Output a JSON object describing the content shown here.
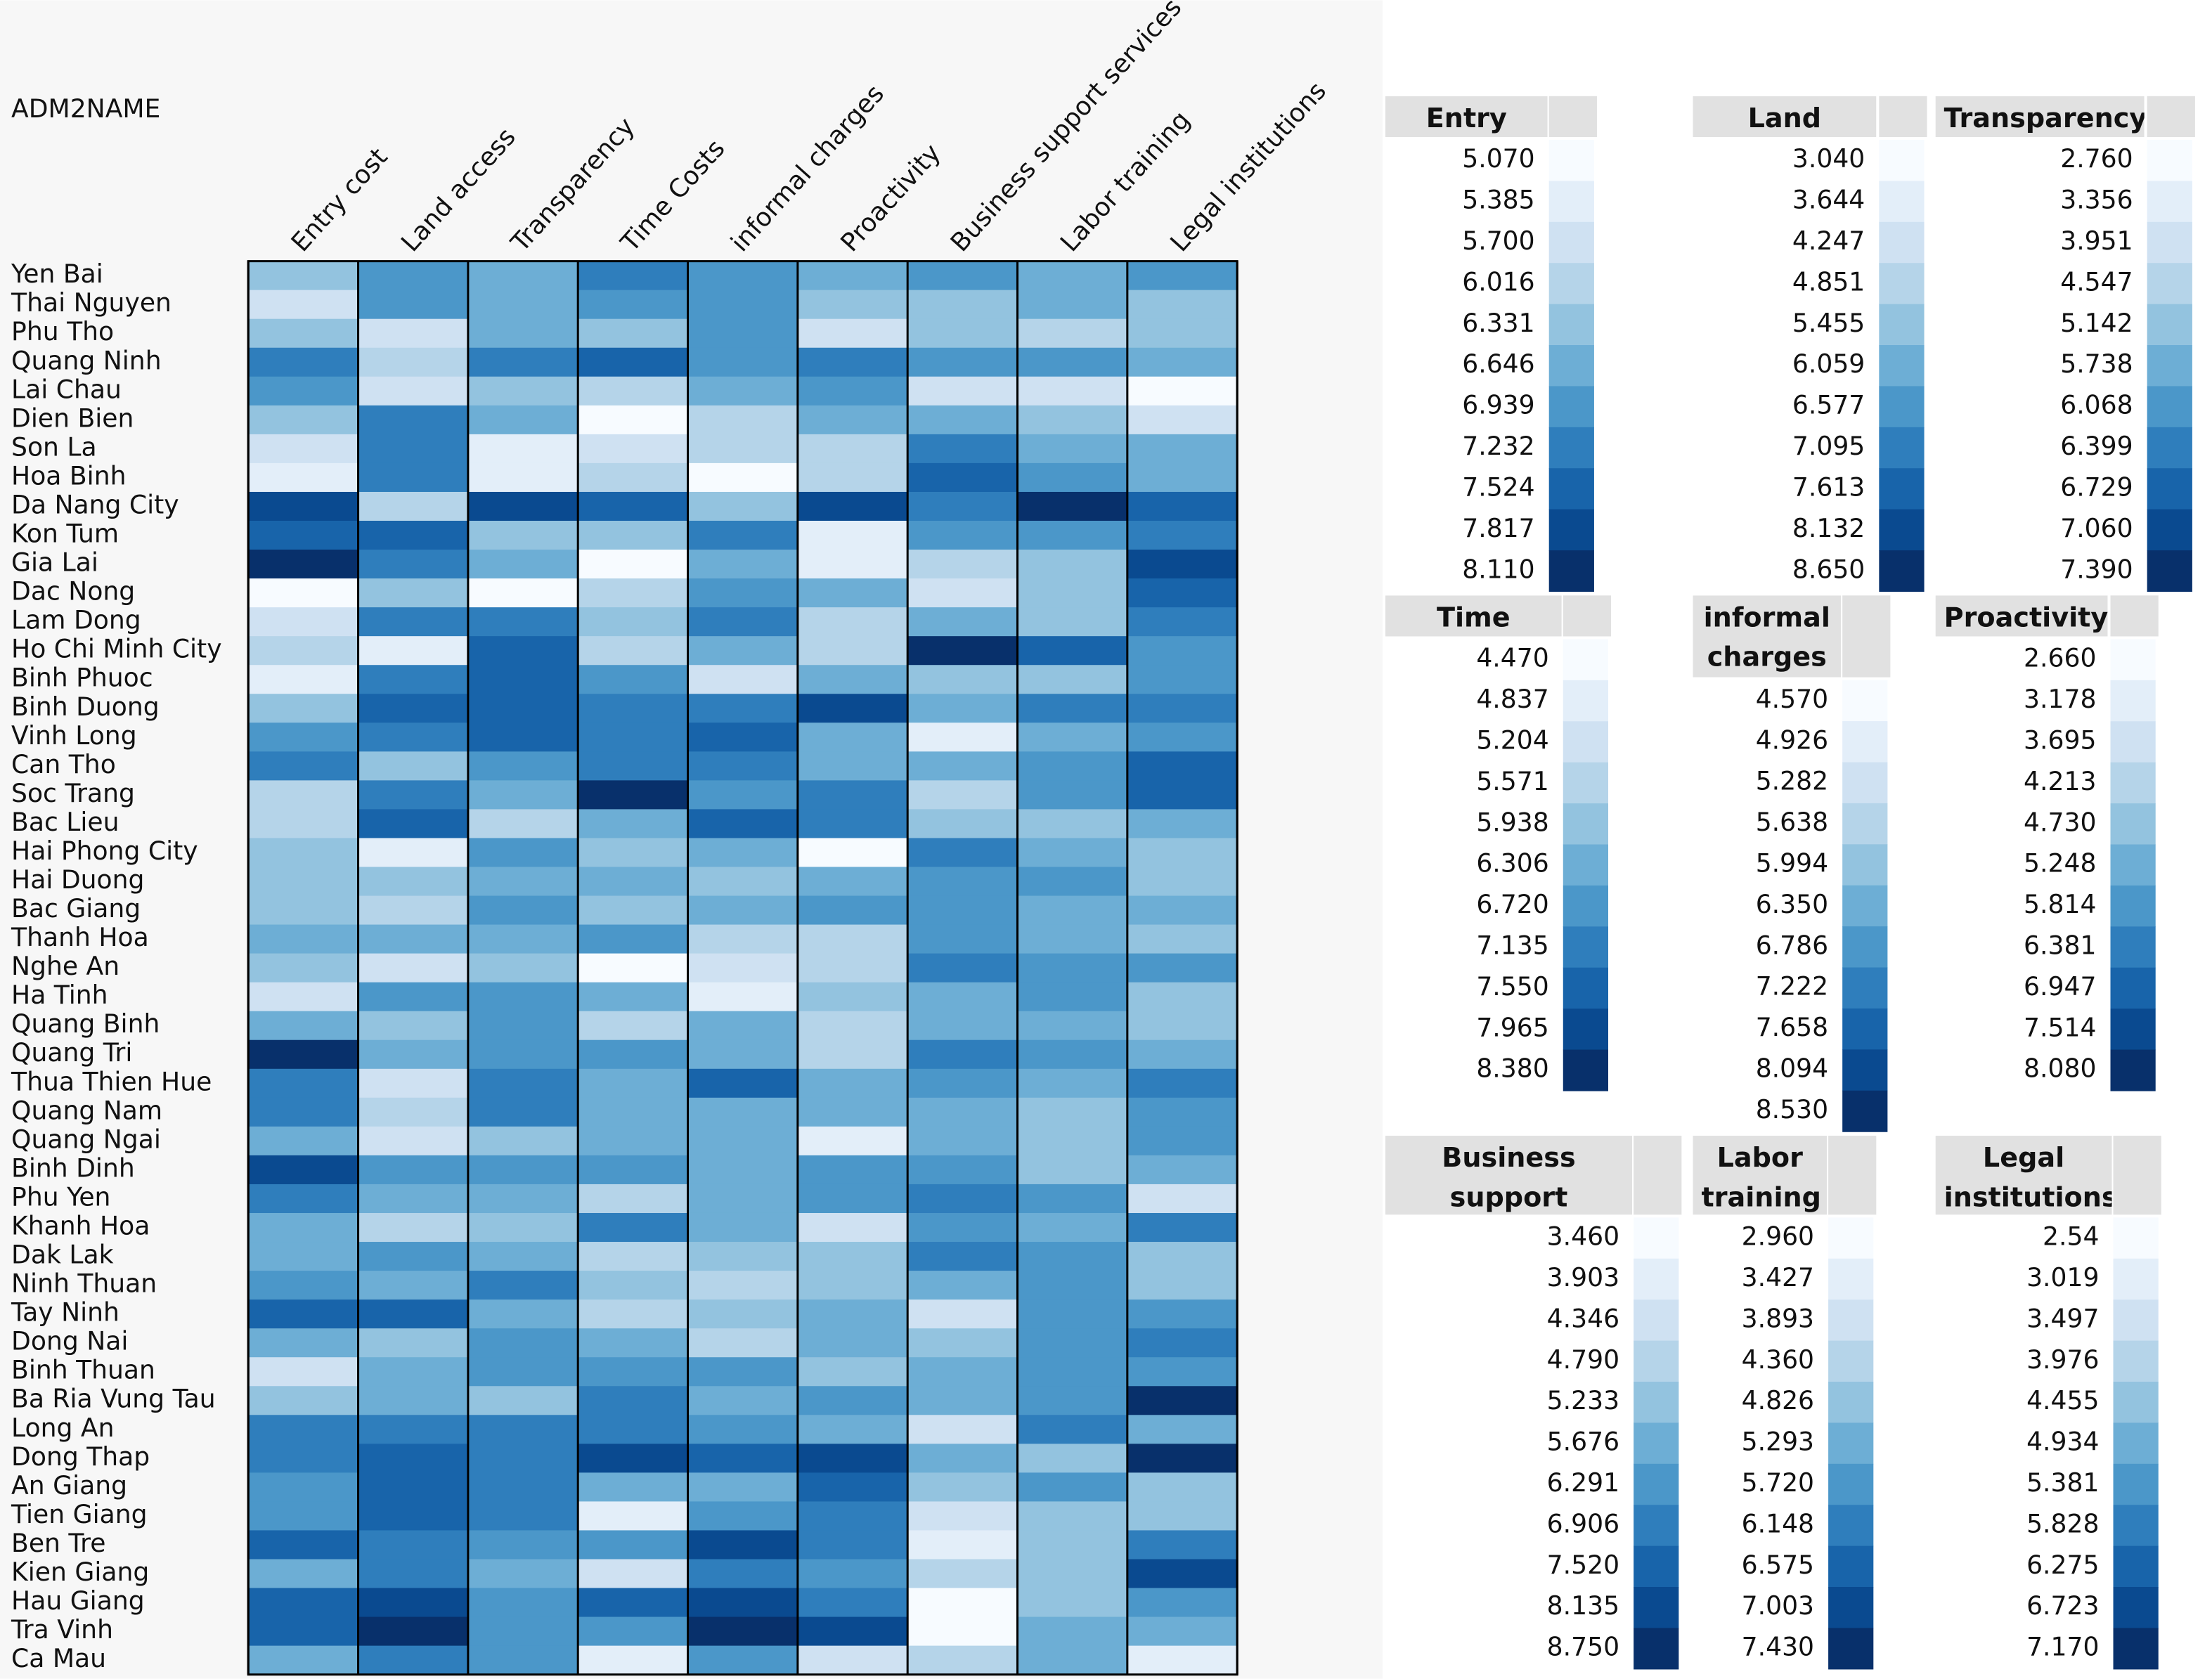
{
  "chart_data": {
    "type": "heatmap",
    "row_label": "ADM2NAME",
    "colors": [
      "#f7fbff",
      "#e3eef9",
      "#cfe1f2",
      "#b5d4e9",
      "#93c3df",
      "#6daed5",
      "#4b97c9",
      "#2f7ebc",
      "#1864aa",
      "#0a4a90",
      "#08306b"
    ],
    "rows": [
      "Yen Bai",
      "Thai Nguyen",
      "Phu Tho",
      "Quang Ninh",
      "Lai Chau",
      "Dien Bien",
      "Son La",
      "Hoa Binh",
      "Da Nang City",
      "Kon Tum",
      "Gia Lai",
      "Dac Nong",
      "Lam Dong",
      "Ho Chi Minh City",
      "Binh Phuoc",
      "Binh Duong",
      "Vinh Long",
      "Can Tho",
      "Soc Trang",
      "Bac Lieu",
      "Hai Phong City",
      "Hai Duong",
      "Bac Giang",
      "Thanh Hoa",
      "Nghe An",
      "Ha Tinh",
      "Quang Binh",
      "Quang Tri",
      "Thua Thien Hue",
      "Quang Nam",
      "Quang Ngai",
      "Binh Dinh",
      "Phu Yen",
      "Khanh Hoa",
      "Dak Lak",
      "Ninh Thuan",
      "Tay Ninh",
      "Dong Nai",
      "Binh Thuan",
      "Ba Ria Vung Tau",
      "Long An",
      "Dong Thap",
      "An Giang",
      "Tien Giang",
      "Ben Tre",
      "Kien Giang",
      "Hau Giang",
      "Tra Vinh",
      "Ca Mau"
    ],
    "series": [
      {
        "name": "Entry cost",
        "ticks": [
          {
            "value": 5.07,
            "label": "5.070"
          },
          5.385,
          {
            "value": 5.7,
            "label": "5.700"
          },
          6.016,
          6.331,
          6.646,
          6.939,
          7.232,
          7.524,
          7.817,
          {
            "value": 8.11,
            "label": "8.110"
          }
        ],
        "values": [
          6.331,
          5.7,
          6.331,
          7.232,
          6.939,
          6.331,
          5.7,
          5.385,
          7.817,
          7.524,
          8.11,
          5.07,
          5.7,
          6.016,
          5.385,
          6.331,
          6.939,
          7.232,
          6.016,
          6.016,
          6.331,
          6.331,
          6.331,
          6.646,
          6.331,
          5.7,
          6.646,
          8.11,
          7.232,
          7.232,
          6.646,
          7.817,
          7.232,
          6.646,
          6.646,
          6.939,
          7.524,
          6.646,
          5.7,
          6.331,
          7.232,
          7.232,
          6.939,
          6.939,
          7.524,
          6.646,
          7.524,
          7.524,
          6.646
        ]
      },
      {
        "name": "Land access",
        "ticks": [
          {
            "value": 3.04,
            "label": "3.040"
          },
          3.644,
          4.247,
          4.851,
          5.455,
          6.059,
          6.577,
          7.095,
          7.613,
          8.132,
          {
            "value": 8.65,
            "label": "8.650"
          }
        ],
        "values": [
          6.577,
          6.577,
          4.247,
          4.851,
          4.247,
          7.095,
          7.095,
          7.095,
          4.851,
          7.613,
          7.095,
          5.455,
          7.095,
          3.644,
          7.095,
          7.613,
          7.095,
          5.455,
          7.095,
          7.613,
          3.644,
          5.455,
          4.851,
          6.059,
          4.247,
          6.577,
          5.455,
          6.059,
          4.247,
          4.851,
          4.247,
          6.577,
          6.059,
          4.851,
          6.577,
          6.059,
          7.613,
          5.455,
          6.059,
          6.059,
          7.095,
          7.613,
          7.613,
          7.613,
          7.095,
          7.095,
          8.132,
          8.65,
          7.095
        ]
      },
      {
        "name": "Transparency",
        "ticks": [
          {
            "value": 2.76,
            "label": "2.760"
          },
          3.356,
          3.951,
          4.547,
          5.142,
          5.738,
          6.068,
          6.399,
          6.729,
          {
            "value": 7.06,
            "label": "7.060"
          },
          {
            "value": 7.39,
            "label": "7.390"
          }
        ],
        "values": [
          5.738,
          5.738,
          5.738,
          6.399,
          5.142,
          5.738,
          3.356,
          3.356,
          7.06,
          5.142,
          5.738,
          2.76,
          6.399,
          6.729,
          6.729,
          6.729,
          6.729,
          6.068,
          5.738,
          4.547,
          6.068,
          5.738,
          6.068,
          5.738,
          5.142,
          6.068,
          6.068,
          6.068,
          6.399,
          6.399,
          5.142,
          6.068,
          5.738,
          5.142,
          5.738,
          6.399,
          5.738,
          6.068,
          6.068,
          5.142,
          6.399,
          6.399,
          6.399,
          6.399,
          6.068,
          5.738,
          6.068,
          6.068,
          6.068
        ]
      },
      {
        "name": "Time Costs",
        "ticks": [
          {
            "value": 4.47,
            "label": "4.470"
          },
          4.837,
          5.204,
          5.571,
          5.938,
          6.306,
          {
            "value": 6.72,
            "label": "6.720"
          },
          7.135,
          {
            "value": 7.55,
            "label": "7.550"
          },
          7.965,
          {
            "value": 8.38,
            "label": "8.380"
          }
        ],
        "values": [
          7.135,
          6.72,
          5.938,
          7.55,
          5.571,
          4.47,
          5.204,
          5.571,
          7.55,
          5.938,
          4.47,
          5.571,
          5.938,
          5.571,
          6.72,
          7.135,
          7.135,
          7.135,
          8.38,
          6.306,
          5.938,
          6.306,
          5.938,
          6.72,
          4.47,
          6.306,
          5.571,
          6.72,
          6.306,
          6.306,
          6.306,
          6.72,
          5.571,
          7.135,
          5.571,
          5.938,
          5.571,
          6.306,
          6.72,
          7.135,
          7.135,
          7.965,
          6.306,
          4.837,
          6.72,
          5.204,
          7.55,
          6.72,
          4.837
        ]
      },
      {
        "name": "informal charges",
        "ticks": [
          {
            "value": 4.57,
            "label": "4.570"
          },
          4.926,
          5.282,
          5.638,
          5.994,
          {
            "value": 6.35,
            "label": "6.350"
          },
          6.786,
          7.222,
          7.658,
          8.094,
          {
            "value": 8.53,
            "label": "8.530"
          }
        ],
        "values": [
          6.786,
          6.786,
          6.786,
          6.786,
          6.35,
          5.638,
          5.638,
          4.57,
          5.994,
          7.222,
          6.35,
          6.786,
          7.222,
          6.35,
          5.282,
          7.222,
          7.658,
          7.222,
          6.786,
          7.658,
          6.35,
          5.994,
          6.35,
          5.638,
          5.282,
          4.926,
          6.35,
          6.35,
          7.658,
          6.35,
          6.35,
          6.35,
          6.35,
          6.35,
          5.994,
          5.638,
          5.994,
          5.638,
          6.786,
          6.35,
          6.786,
          7.658,
          6.35,
          6.786,
          8.094,
          7.222,
          8.094,
          8.53,
          6.786
        ]
      },
      {
        "name": "Proactivity",
        "ticks": [
          {
            "value": 2.66,
            "label": "2.660"
          },
          3.178,
          3.695,
          4.213,
          {
            "value": 4.73,
            "label": "4.730"
          },
          5.248,
          5.814,
          6.381,
          6.947,
          7.514,
          {
            "value": 8.08,
            "label": "8.080"
          }
        ],
        "values": [
          5.248,
          4.73,
          3.695,
          6.381,
          5.814,
          5.248,
          4.213,
          4.213,
          7.514,
          3.178,
          3.178,
          5.248,
          4.213,
          4.213,
          5.248,
          7.514,
          5.248,
          5.248,
          6.381,
          6.381,
          2.66,
          5.248,
          5.814,
          4.213,
          4.213,
          4.73,
          4.213,
          4.213,
          5.248,
          5.248,
          3.178,
          5.814,
          5.814,
          3.695,
          4.73,
          4.73,
          5.248,
          5.248,
          4.73,
          5.814,
          5.248,
          7.514,
          6.947,
          6.381,
          6.381,
          5.814,
          6.381,
          7.514,
          3.695
        ]
      },
      {
        "name": "Business support services",
        "ticks": [
          {
            "value": 3.46,
            "label": "3.460"
          },
          3.903,
          4.346,
          {
            "value": 4.79,
            "label": "4.790"
          },
          5.233,
          5.676,
          6.291,
          6.906,
          {
            "value": 7.52,
            "label": "7.520"
          },
          8.135,
          {
            "value": 8.75,
            "label": "8.750"
          }
        ],
        "values": [
          6.291,
          5.233,
          5.233,
          6.291,
          4.346,
          5.676,
          6.906,
          7.52,
          6.906,
          6.291,
          4.79,
          4.346,
          5.676,
          8.75,
          5.233,
          5.676,
          3.903,
          5.676,
          4.79,
          5.233,
          6.906,
          6.291,
          6.291,
          6.291,
          6.906,
          5.676,
          5.676,
          6.906,
          6.291,
          5.676,
          5.676,
          6.291,
          6.906,
          6.291,
          6.906,
          5.676,
          4.346,
          5.233,
          5.676,
          5.676,
          4.346,
          5.676,
          5.233,
          4.346,
          3.903,
          4.79,
          3.46,
          3.46,
          4.79
        ]
      },
      {
        "name": "Labor training",
        "ticks": [
          {
            "value": 2.96,
            "label": "2.960"
          },
          3.427,
          3.893,
          {
            "value": 4.36,
            "label": "4.360"
          },
          4.826,
          5.293,
          {
            "value": 5.72,
            "label": "5.720"
          },
          6.148,
          6.575,
          7.003,
          {
            "value": 7.43,
            "label": "7.430"
          }
        ],
        "values": [
          5.293,
          5.293,
          4.36,
          5.72,
          3.893,
          4.826,
          5.293,
          5.72,
          7.43,
          5.72,
          4.826,
          4.826,
          4.826,
          6.575,
          4.826,
          6.148,
          5.293,
          5.72,
          5.72,
          4.826,
          5.293,
          5.72,
          5.293,
          5.293,
          5.72,
          5.72,
          5.293,
          5.72,
          5.293,
          4.826,
          4.826,
          4.826,
          5.72,
          5.293,
          5.72,
          5.72,
          5.72,
          5.72,
          5.72,
          5.72,
          6.148,
          4.826,
          5.72,
          4.826,
          4.826,
          4.826,
          4.826,
          5.293,
          5.293
        ]
      },
      {
        "name": "Legal institutions",
        "ticks": [
          2.54,
          3.019,
          3.497,
          3.976,
          4.455,
          4.934,
          5.381,
          5.828,
          6.275,
          6.723,
          {
            "value": 7.17,
            "label": "7.170"
          }
        ],
        "values": [
          5.381,
          4.455,
          4.455,
          4.934,
          2.54,
          3.497,
          4.934,
          4.934,
          6.275,
          5.828,
          6.723,
          6.275,
          5.828,
          5.381,
          5.381,
          5.828,
          5.381,
          6.275,
          6.275,
          4.934,
          4.455,
          4.455,
          4.934,
          4.455,
          5.381,
          4.455,
          4.455,
          4.934,
          5.828,
          5.381,
          5.381,
          4.934,
          3.497,
          5.828,
          4.455,
          4.455,
          5.381,
          5.828,
          5.381,
          7.17,
          4.934,
          7.17,
          4.455,
          4.455,
          5.828,
          6.723,
          5.381,
          4.934,
          3.019
        ]
      }
    ]
  }
}
